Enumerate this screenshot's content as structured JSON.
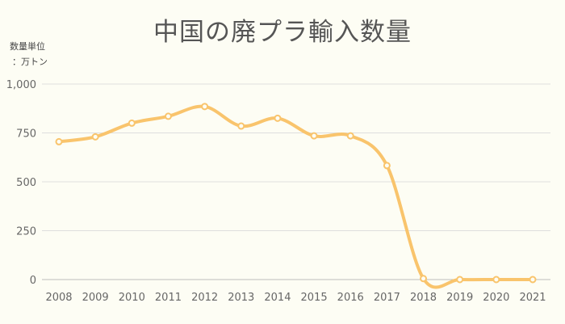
{
  "chart_data": {
    "type": "line",
    "title": "中国の廃プラ輸入数量",
    "unit_label_line1": "数量単位",
    "unit_label_line2": "：万トン",
    "ylim": [
      0,
      1000
    ],
    "y_ticks": [
      "0",
      "250",
      "500",
      "750",
      "1,000"
    ],
    "y_tick_values": [
      0,
      250,
      500,
      750,
      1000
    ],
    "grid": true,
    "line_color": "#f9c46c",
    "x": [
      "2008",
      "2009",
      "2010",
      "2011",
      "2012",
      "2013",
      "2014",
      "2015",
      "2016",
      "2017",
      "2018",
      "2019",
      "2020",
      "2021"
    ],
    "series": [
      {
        "values": [
          705,
          730,
          800,
          835,
          885,
          785,
          825,
          735,
          735,
          583,
          5,
          0,
          0,
          0
        ]
      }
    ]
  }
}
